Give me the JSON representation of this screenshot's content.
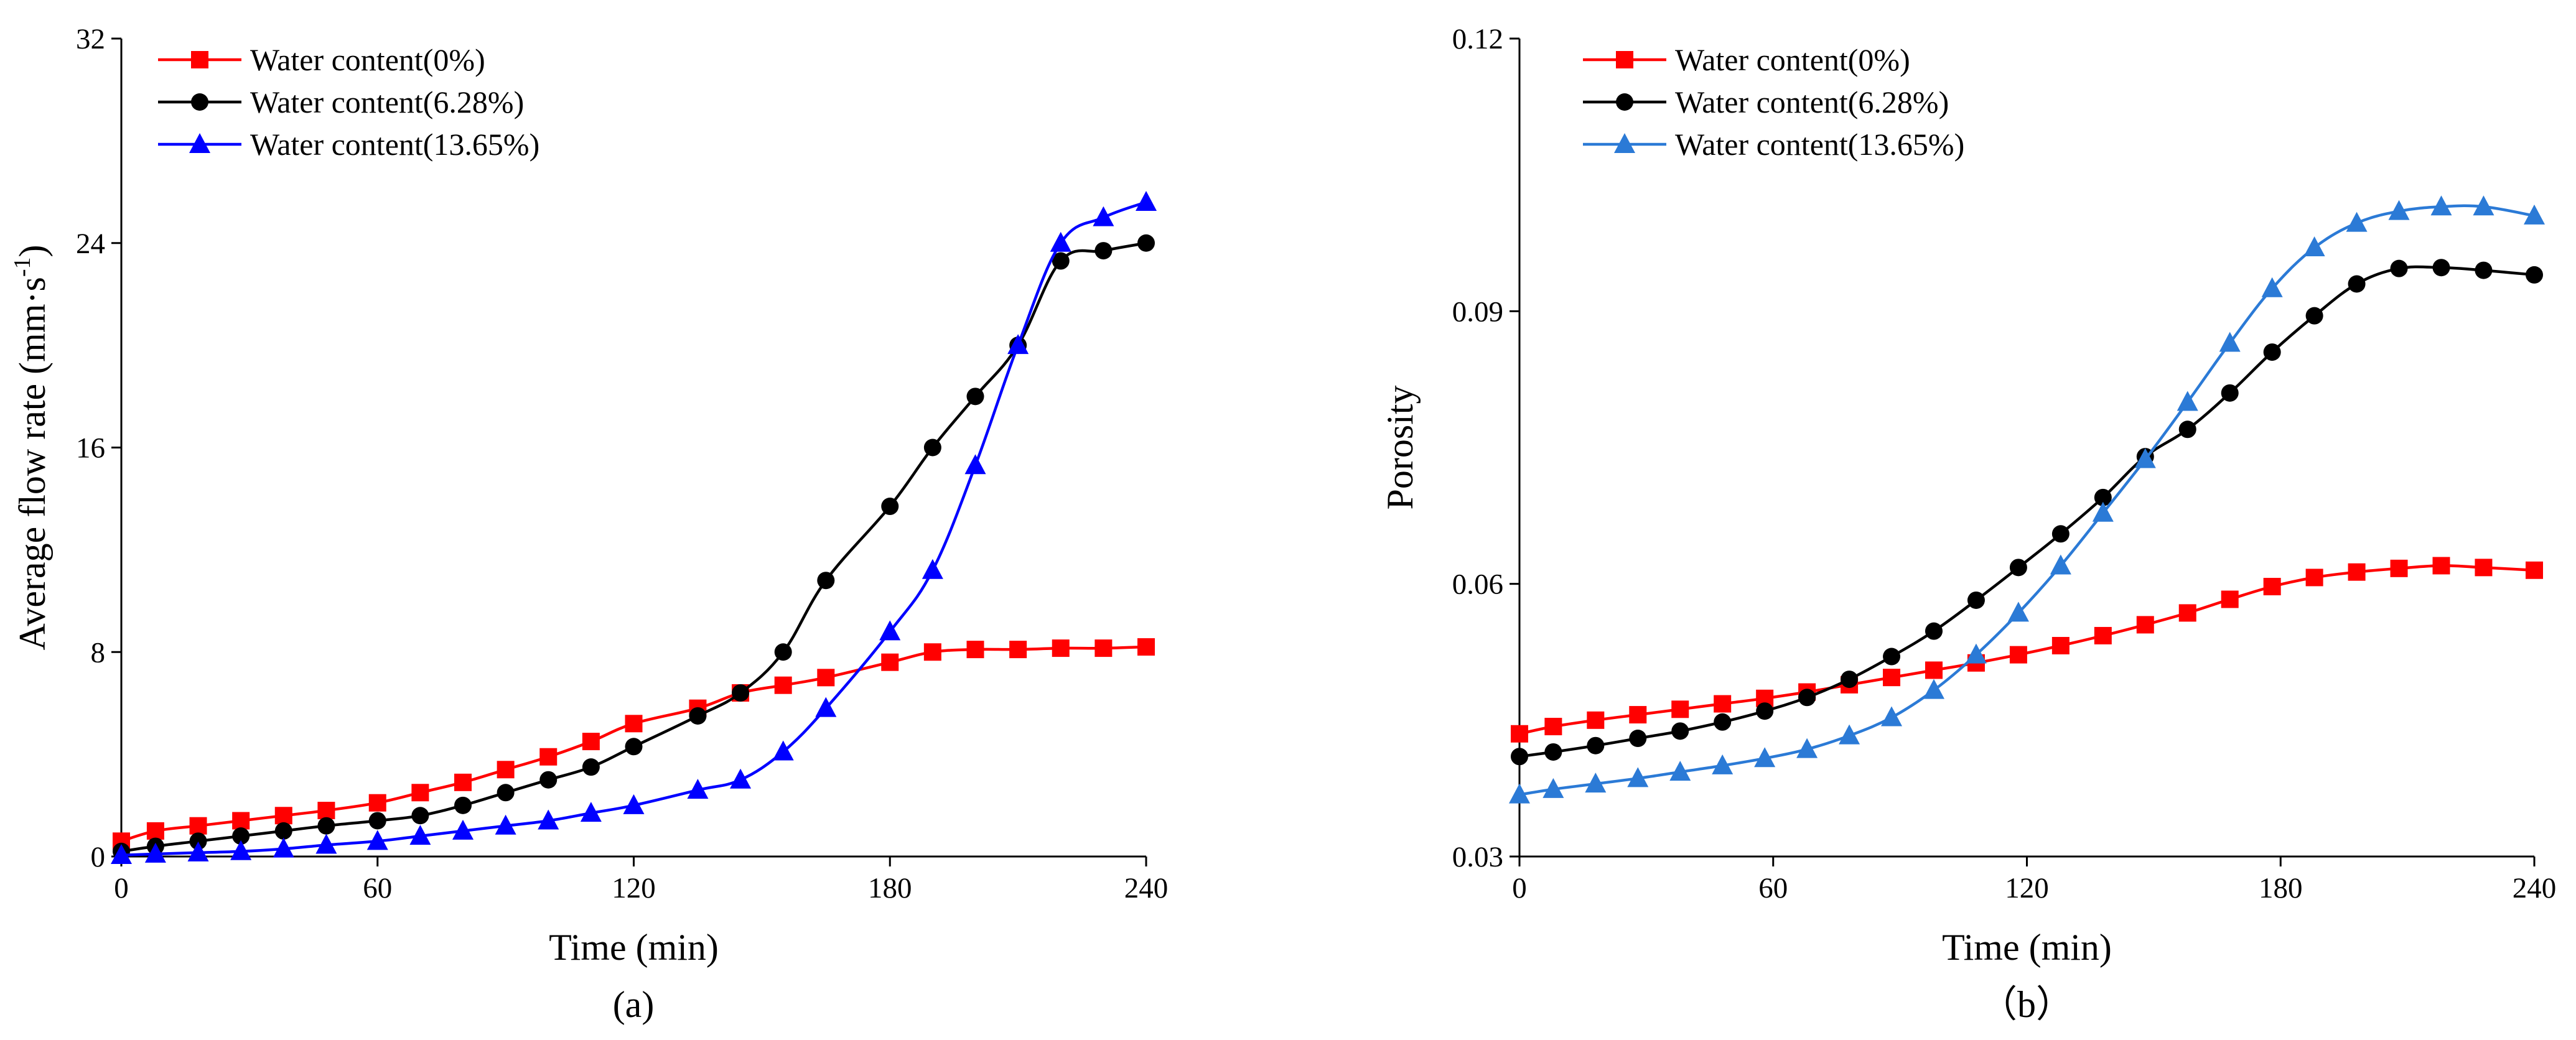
{
  "chart_data": [
    {
      "type": "line",
      "caption": "(a)",
      "xlabel": "Time (min)",
      "ylabel": "Average flow rate (mm·s",
      "ylabel_sup": "-1",
      "ylabel_close": ")",
      "xlim": [
        0,
        240
      ],
      "ylim": [
        0,
        32
      ],
      "xticks": [
        0,
        60,
        120,
        180,
        240
      ],
      "yticks": [
        0,
        8,
        16,
        24,
        32
      ],
      "ytick_labels": [
        "0",
        "8",
        "16",
        "24",
        "32"
      ],
      "legend_position": "top-left",
      "series": [
        {
          "name": "Water content(0%)",
          "color": "#ff0000",
          "marker": "square",
          "x": [
            0,
            8,
            18,
            28,
            38,
            48,
            60,
            70,
            80,
            90,
            100,
            110,
            120,
            135,
            145,
            155,
            165,
            180,
            190,
            200,
            210,
            220,
            230,
            240
          ],
          "y": [
            0.6,
            1.0,
            1.2,
            1.4,
            1.6,
            1.8,
            2.1,
            2.5,
            2.9,
            3.4,
            3.9,
            4.5,
            5.2,
            5.8,
            6.4,
            6.7,
            7.0,
            7.6,
            8.0,
            8.1,
            8.1,
            8.15,
            8.15,
            8.2
          ]
        },
        {
          "name": "Water content(6.28%)",
          "color": "#000000",
          "marker": "circle",
          "x": [
            0,
            8,
            18,
            28,
            38,
            48,
            60,
            70,
            80,
            90,
            100,
            110,
            120,
            135,
            145,
            155,
            165,
            180,
            190,
            200,
            210,
            220,
            230,
            240
          ],
          "y": [
            0.2,
            0.4,
            0.6,
            0.8,
            1.0,
            1.2,
            1.4,
            1.6,
            2.0,
            2.5,
            3.0,
            3.5,
            4.3,
            5.5,
            6.4,
            8.0,
            10.8,
            13.7,
            16.0,
            18.0,
            20.0,
            23.3,
            23.7,
            24.0
          ]
        },
        {
          "name": "Water content(13.65%)",
          "color": "#0000ff",
          "marker": "triangle",
          "x": [
            0,
            8,
            18,
            28,
            38,
            48,
            60,
            70,
            80,
            90,
            100,
            110,
            120,
            135,
            145,
            155,
            165,
            180,
            190,
            200,
            210,
            220,
            230,
            240
          ],
          "y": [
            0.05,
            0.1,
            0.15,
            0.2,
            0.3,
            0.45,
            0.6,
            0.8,
            1.0,
            1.2,
            1.4,
            1.7,
            2.0,
            2.6,
            3.0,
            4.1,
            5.8,
            8.8,
            11.2,
            15.3,
            20.0,
            24.0,
            25.0,
            25.6
          ]
        }
      ]
    },
    {
      "type": "line",
      "caption": "（b）",
      "xlabel": "Time (min)",
      "ylabel": "Porosity",
      "xlim": [
        0,
        240
      ],
      "ylim": [
        0.03,
        0.12
      ],
      "xticks": [
        0,
        60,
        120,
        180,
        240
      ],
      "yticks": [
        0.03,
        0.06,
        0.09,
        0.12
      ],
      "ytick_labels": [
        "0.03",
        "0.06",
        "0.09",
        "0.12"
      ],
      "legend_position": "top-left",
      "series": [
        {
          "name": "Water content(0%)",
          "color": "#ff0000",
          "marker": "square",
          "x": [
            0,
            8,
            18,
            28,
            38,
            48,
            58,
            68,
            78,
            88,
            98,
            108,
            118,
            128,
            138,
            148,
            158,
            168,
            178,
            188,
            198,
            208,
            218,
            228,
            240
          ],
          "y": [
            0.0435,
            0.0443,
            0.045,
            0.0456,
            0.0462,
            0.0468,
            0.0474,
            0.0481,
            0.0489,
            0.0497,
            0.0505,
            0.0513,
            0.0522,
            0.0532,
            0.0543,
            0.0555,
            0.0568,
            0.0583,
            0.0597,
            0.0607,
            0.0613,
            0.0617,
            0.062,
            0.0618,
            0.0615
          ]
        },
        {
          "name": "Water content(6.28%)",
          "color": "#000000",
          "marker": "circle",
          "x": [
            0,
            8,
            18,
            28,
            38,
            48,
            58,
            68,
            78,
            88,
            98,
            108,
            118,
            128,
            138,
            148,
            158,
            168,
            178,
            188,
            198,
            208,
            218,
            228,
            240
          ],
          "y": [
            0.041,
            0.0415,
            0.0422,
            0.043,
            0.0438,
            0.0448,
            0.046,
            0.0475,
            0.0495,
            0.052,
            0.0548,
            0.0582,
            0.0618,
            0.0655,
            0.0695,
            0.074,
            0.077,
            0.081,
            0.0855,
            0.0895,
            0.093,
            0.0947,
            0.0948,
            0.0945,
            0.094
          ]
        },
        {
          "name": "Water content(13.65%)",
          "color": "#2b7ad6",
          "marker": "triangle",
          "x": [
            0,
            8,
            18,
            28,
            38,
            48,
            58,
            68,
            78,
            88,
            98,
            108,
            118,
            128,
            138,
            148,
            158,
            168,
            178,
            188,
            198,
            208,
            218,
            228,
            240
          ],
          "y": [
            0.0368,
            0.0374,
            0.038,
            0.0386,
            0.0393,
            0.04,
            0.0408,
            0.0418,
            0.0433,
            0.0453,
            0.0483,
            0.0522,
            0.0568,
            0.062,
            0.0678,
            0.0737,
            0.08,
            0.0865,
            0.0925,
            0.097,
            0.0997,
            0.101,
            0.1015,
            0.1015,
            0.1005
          ]
        }
      ]
    }
  ]
}
